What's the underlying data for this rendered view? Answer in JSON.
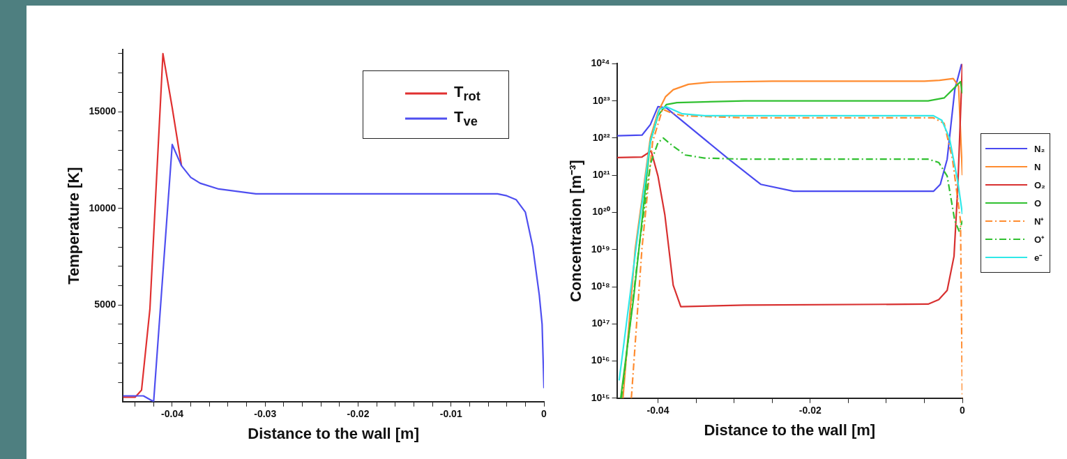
{
  "chart_data": [
    {
      "type": "line",
      "xlabel": "Distance to the wall [m]",
      "ylabel": "Temperature [K]",
      "xlim": [
        -0.0453,
        0
      ],
      "ylim": [
        0,
        18200
      ],
      "xticks": [
        -0.04,
        {
          "value": -0.038,
          "label": null
        },
        {
          "value": -0.036,
          "label": null
        },
        {
          "value": -0.034,
          "label": null
        },
        {
          "value": -0.032,
          "label": null
        },
        -0.03,
        {
          "value": -0.028,
          "label": null
        },
        {
          "value": -0.026,
          "label": null
        },
        {
          "value": -0.024,
          "label": null
        },
        {
          "value": -0.022,
          "label": null
        },
        -0.02,
        {
          "value": -0.018,
          "label": null
        },
        {
          "value": -0.016,
          "label": null
        },
        {
          "value": -0.014,
          "label": null
        },
        {
          "value": -0.012,
          "label": null
        },
        -0.01,
        {
          "value": -0.008,
          "label": null
        },
        {
          "value": -0.006,
          "label": null
        },
        {
          "value": -0.004,
          "label": null
        },
        {
          "value": -0.002,
          "label": null
        },
        0,
        {
          "value": -0.042,
          "label": null
        },
        {
          "value": -0.044,
          "label": null
        }
      ],
      "yticks": [
        {
          "value": 1000,
          "label": null
        },
        {
          "value": 2000,
          "label": null
        },
        {
          "value": 3000,
          "label": null
        },
        {
          "value": 4000,
          "label": null
        },
        5000,
        {
          "value": 6000,
          "label": null
        },
        {
          "value": 7000,
          "label": null
        },
        {
          "value": 8000,
          "label": null
        },
        {
          "value": 9000,
          "label": null
        },
        10000,
        {
          "value": 11000,
          "label": null
        },
        {
          "value": 12000,
          "label": null
        },
        {
          "value": 13000,
          "label": null
        },
        {
          "value": 14000,
          "label": null
        },
        15000,
        {
          "value": 16000,
          "label": null
        },
        {
          "value": 17000,
          "label": null
        },
        {
          "value": 18000,
          "label": null
        }
      ],
      "grid": false,
      "legend": "top right",
      "marker": "none",
      "line_style": "solid",
      "series": [
        {
          "name": "T$_{rot}$",
          "color": "#e03030",
          "x": [
            -0.0453,
            -0.044,
            -0.0433,
            -0.0424,
            -0.041,
            -0.04,
            -0.039
          ],
          "values": [
            230,
            230,
            600,
            4800,
            18000,
            15200,
            12200
          ]
        },
        {
          "name": "T$_{ve}$",
          "color": "#4f4ff0",
          "x": [
            -0.0453,
            -0.0431,
            -0.042,
            -0.04,
            -0.039,
            -0.038,
            -0.037,
            -0.035,
            -0.031,
            -0.005,
            -0.004,
            -0.003,
            -0.002,
            -0.0012,
            -0.0005,
            -0.0002,
            0
          ],
          "values": [
            300,
            300,
            0,
            13300,
            12200,
            11600,
            11300,
            11000,
            10750,
            10750,
            10650,
            10450,
            9800,
            8000,
            5500,
            4000,
            700
          ]
        }
      ]
    },
    {
      "type": "line",
      "xlabel": "Distance to the wall [m]",
      "ylabel": "Concentration [m⁻³]",
      "xlim": [
        -0.0454,
        0
      ],
      "ylim": [
        1000000000000000.0,
        1e+24
      ],
      "log": "y",
      "xticks": [
        -0.04,
        {
          "value": -0.035,
          "label": null
        },
        {
          "value": -0.03,
          "label": null
        },
        {
          "value": -0.025,
          "label": null
        },
        -0.02,
        {
          "value": -0.015,
          "label": null
        },
        {
          "value": -0.01,
          "label": null
        },
        {
          "value": -0.005,
          "label": null
        },
        0
      ],
      "yticks": [
        {
          "value": 1000000000000000.0,
          "label": "10¹⁵"
        },
        {
          "value": 1e+16,
          "label": "10¹⁶"
        },
        {
          "value": 1e+17,
          "label": "10¹⁷"
        },
        {
          "value": 1e+18,
          "label": "10¹⁸"
        },
        {
          "value": 1e+19,
          "label": "10¹⁹"
        },
        {
          "value": 1e+20,
          "label": "10²⁰"
        },
        {
          "value": 1e+21,
          "label": "10²¹"
        },
        {
          "value": 1e+22,
          "label": "10²²"
        },
        {
          "value": 1e+23,
          "label": "10²³"
        },
        {
          "value": 1e+24,
          "label": "10²⁴"
        }
      ],
      "grid": false,
      "legend": "right",
      "marker": "none",
      "series": [
        {
          "name": "N₂",
          "color": "#4a4af0",
          "line_style": "solid",
          "x": [
            -0.04535,
            -0.0421,
            -0.041,
            -0.04,
            -0.0389,
            -0.0307,
            -0.0265,
            -0.0222,
            -0.0038,
            -0.0029,
            -0.002,
            -0.001,
            -0.0001
          ],
          "values": [
            1.15e+22,
            1.2e+22,
            2.3e+22,
            7e+22,
            6.5e+22,
            2.7e+21,
            5.7e+20,
            3.7e+20,
            3.7e+20,
            5.7e+20,
            2.7e+21,
            2e+23,
            1e+24
          ]
        },
        {
          "name": "N",
          "color": "#ff8c30",
          "line_style": "solid",
          "x": [
            -0.0446,
            -0.043,
            -0.041,
            -0.04,
            -0.039,
            -0.038,
            -0.036,
            -0.033,
            -0.025,
            -0.005,
            -0.003,
            -0.0012,
            -0.0005,
            0
          ],
          "values": [
            1000000000000000.0,
            1e+19,
            1e+22,
            5e+22,
            1.3e+23,
            2e+23,
            2.8e+23,
            3.2e+23,
            3.4e+23,
            3.4e+23,
            3.6e+23,
            4e+23,
            2.5e+23,
            1e+21
          ]
        },
        {
          "name": "O₂",
          "color": "#d83030",
          "line_style": "solid",
          "x": [
            -0.04535,
            -0.0421,
            -0.0409,
            -0.04,
            -0.0391,
            -0.038,
            -0.037,
            -0.0286,
            -0.0045,
            -0.0031,
            -0.002,
            -0.0011,
            -0.0006,
            0
          ],
          "values": [
            3e+21,
            3.1e+21,
            4.5e+21,
            9.5e+20,
            8.7e+19,
            1.1e+18,
            2.9e+17,
            3.2e+17,
            3.4e+17,
            4.5e+17,
            8e+17,
            6.6e+18,
            5e+20,
            1e+24
          ]
        },
        {
          "name": "O",
          "color": "#30c030",
          "line_style": "solid",
          "x": [
            -0.0449,
            -0.0432,
            -0.0421,
            -0.041,
            -0.04,
            -0.0389,
            -0.0375,
            -0.0286,
            -0.0045,
            -0.0024,
            -0.0013,
            -0.00025,
            0
          ],
          "values": [
            1000000000000000.0,
            5e+17,
            6e+19,
            8e+21,
            4e+22,
            8e+22,
            9e+22,
            1e+23,
            1e+23,
            1.2e+23,
            2e+23,
            3.3e+23,
            1.6e+23
          ]
        },
        {
          "name": "N⁺",
          "color": "#ff8c30",
          "line_style": "dashdot",
          "x": [
            -0.0435,
            -0.0421,
            -0.0407,
            -0.0394,
            -0.0385,
            -0.0368,
            -0.0286,
            -0.0038,
            -0.0024,
            -0.0013,
            -0.00025,
            0
          ],
          "values": [
            1000000000000000.0,
            1.1e+19,
            8e+21,
            6e+22,
            5e+22,
            4e+22,
            3.5e+22,
            3.5e+22,
            2.5e+22,
            2.7e+21,
            6e+19,
            1000000000000000.0
          ]
        },
        {
          "name": "O⁺",
          "color": "#30c030",
          "line_style": "dashdot",
          "x": [
            -0.0448,
            -0.0425,
            -0.041,
            -0.04,
            -0.0393,
            -0.0382,
            -0.0364,
            -0.0339,
            -0.0286,
            -0.0045,
            -0.0031,
            -0.002,
            -0.001,
            -0.0004,
            0
          ],
          "values": [
            1000000000000000.0,
            1.1e+19,
            2e+21,
            7.5e+21,
            1e+22,
            6.5e+21,
            3.5e+21,
            2.9e+21,
            2.7e+21,
            2.7e+21,
            2.2e+21,
            9.5e+20,
            6e+19,
            3e+19,
            6e+19
          ]
        },
        {
          "name": "e⁻",
          "color": "#30e8e8",
          "line_style": "solid",
          "x": [
            -0.0451,
            -0.0428,
            -0.041,
            -0.0398,
            -0.0389,
            -0.0368,
            -0.0339,
            -0.0038,
            -0.0027,
            -0.0017,
            -0.0006,
            0
          ],
          "values": [
            3000000000000000.0,
            1.5e+19,
            8e+21,
            6e+22,
            7e+22,
            4.5e+22,
            4e+22,
            4e+22,
            3e+22,
            1e+22,
            6.7e+20,
            9e+19
          ]
        }
      ]
    }
  ]
}
